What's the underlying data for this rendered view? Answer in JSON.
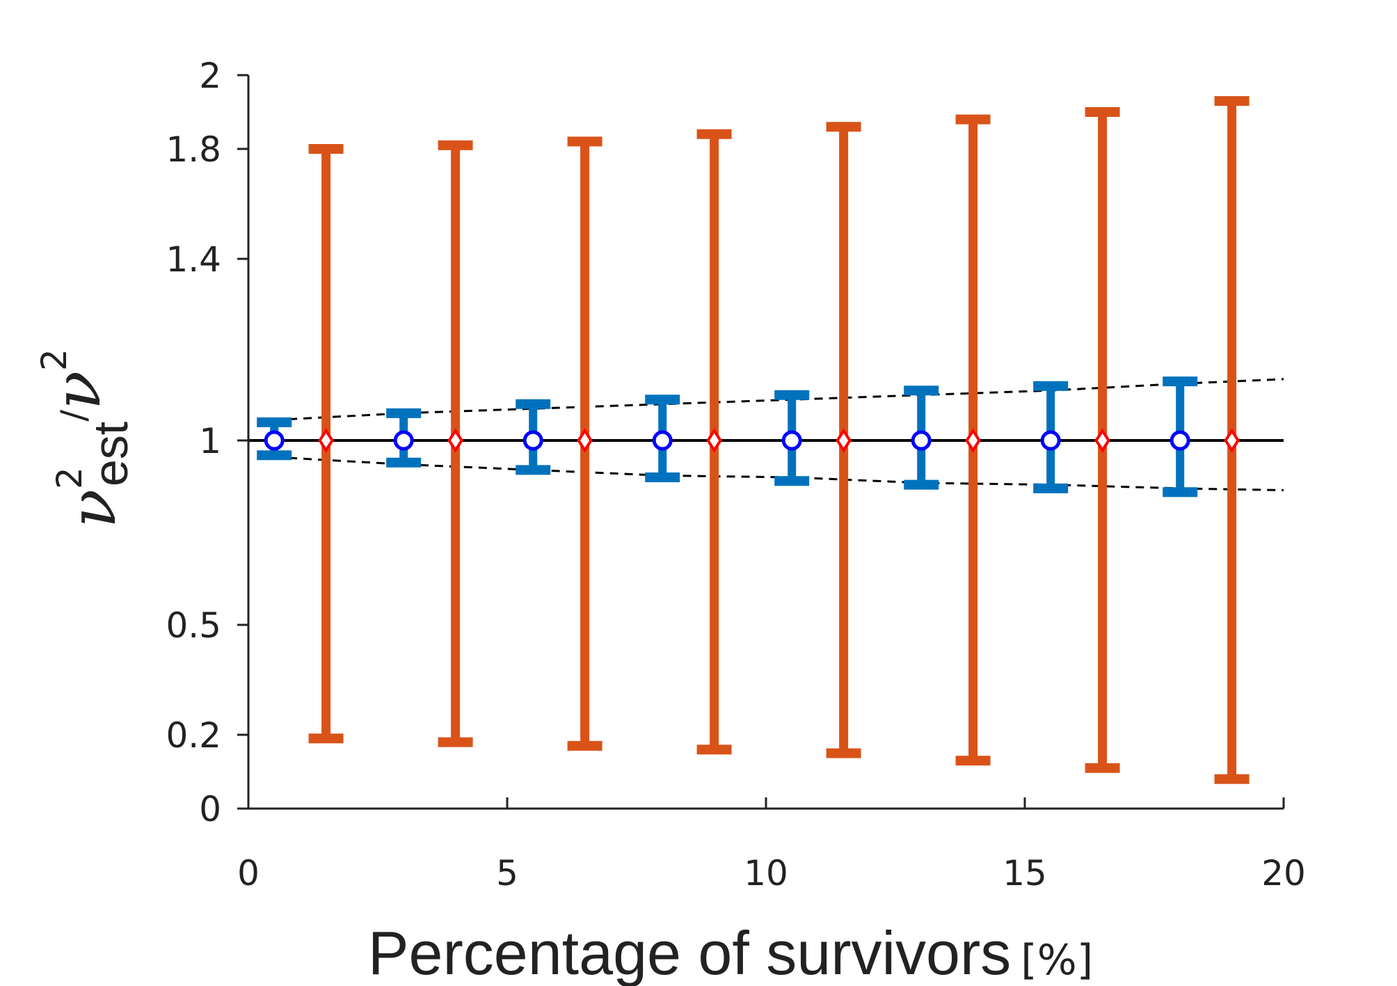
{
  "chart_data": {
    "type": "scatter",
    "title": "",
    "xlabel": "Percentage of survivors",
    "xlabel_unit": "[%]",
    "ylabel": {
      "symbol": "ν",
      "sub": "est",
      "sup": "2",
      "slash": "/"
    },
    "xlim": [
      0,
      20
    ],
    "ylim": [
      0,
      2
    ],
    "xticks": [
      "0",
      "5",
      "10",
      "15",
      "20"
    ],
    "xtick_values": [
      0,
      5,
      10,
      15,
      20
    ],
    "yticks": [
      "0",
      "0.2",
      "0.5",
      "1",
      "1.4",
      "1.8",
      "2"
    ],
    "ytick_values": [
      0,
      0.2,
      0.5,
      1,
      1.4,
      1.8,
      2
    ],
    "y_scale": "nonlinear (tick positions as shown)",
    "grid": false,
    "reference_line": {
      "y": 1,
      "color": "#000000"
    },
    "series": [
      {
        "marker": "circle",
        "marker_color": "#0000ff",
        "errorbar_color": "#0072bd",
        "x": [
          0.5,
          3,
          5.5,
          8,
          10.5,
          13,
          15.5,
          18
        ],
        "y": [
          1,
          1,
          1,
          1,
          1,
          1,
          1,
          1
        ],
        "y_low": [
          0.96,
          0.94,
          0.92,
          0.9,
          0.89,
          0.88,
          0.87,
          0.86
        ],
        "y_high": [
          1.04,
          1.06,
          1.08,
          1.09,
          1.1,
          1.11,
          1.12,
          1.13
        ]
      },
      {
        "marker": "diamond",
        "marker_color": "#ff0000",
        "errorbar_color": "#d95319",
        "x": [
          1.5,
          4,
          6.5,
          9,
          11.5,
          14,
          16.5,
          19
        ],
        "y": [
          1,
          1,
          1,
          1,
          1,
          1,
          1,
          1
        ],
        "y_low": [
          0.19,
          0.18,
          0.17,
          0.16,
          0.15,
          0.13,
          0.11,
          0.08
        ],
        "y_high": [
          1.8,
          1.81,
          1.82,
          1.84,
          1.86,
          1.88,
          1.9,
          1.93
        ]
      }
    ],
    "bounds": [
      {
        "style": "dashed",
        "color": "#000000",
        "x": [
          0.5,
          3,
          5.5,
          8,
          10.5,
          13,
          15.5,
          18,
          20
        ],
        "y": [
          1.045,
          1.06,
          1.07,
          1.08,
          1.09,
          1.1,
          1.11,
          1.125,
          1.135
        ]
      },
      {
        "style": "dashed",
        "color": "#000000",
        "x": [
          0.5,
          3,
          5.5,
          8,
          10.5,
          13,
          15.5,
          18,
          20
        ],
        "y": [
          0.955,
          0.935,
          0.92,
          0.905,
          0.9,
          0.885,
          0.88,
          0.87,
          0.865
        ]
      }
    ]
  }
}
